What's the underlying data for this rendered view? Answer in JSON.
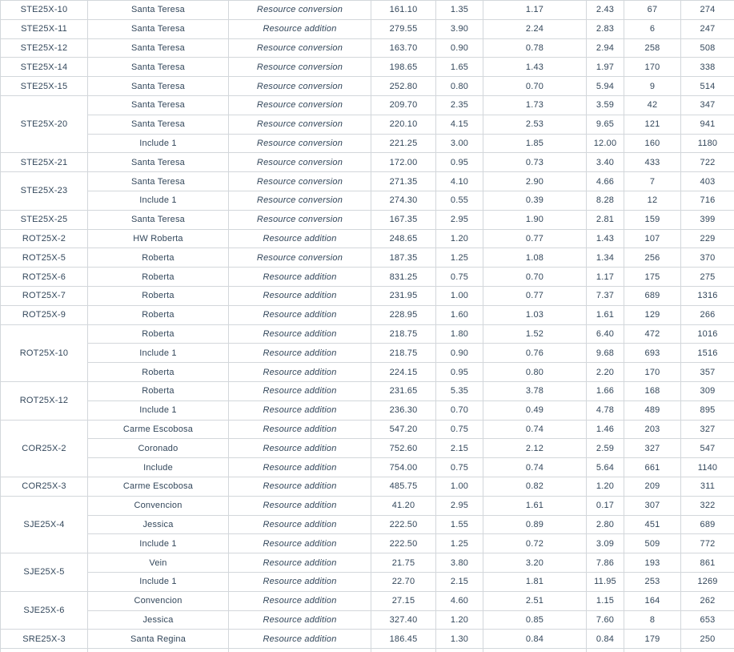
{
  "table": {
    "colors": {
      "text": "#33475b",
      "border": "#d3d7db",
      "background": "#ffffff"
    },
    "columns": [
      "id",
      "name",
      "type",
      "value1",
      "value2",
      "value3",
      "value4",
      "value5",
      "value6"
    ],
    "type_values_seen": [
      "Resource conversion",
      "Resource addition"
    ],
    "groups": [
      {
        "id": "STE25X-10",
        "rows": [
          {
            "name": "Santa Teresa",
            "type": "Resource conversion",
            "values": [
              "161.10",
              "1.35",
              "1.17",
              "2.43",
              "67",
              "274"
            ]
          }
        ]
      },
      {
        "id": "STE25X-11",
        "rows": [
          {
            "name": "Santa Teresa",
            "type": "Resource addition",
            "values": [
              "279.55",
              "3.90",
              "2.24",
              "2.83",
              "6",
              "247"
            ]
          }
        ]
      },
      {
        "id": "STE25X-12",
        "rows": [
          {
            "name": "Santa Teresa",
            "type": "Resource conversion",
            "values": [
              "163.70",
              "0.90",
              "0.78",
              "2.94",
              "258",
              "508"
            ]
          }
        ]
      },
      {
        "id": "STE25X-14",
        "rows": [
          {
            "name": "Santa Teresa",
            "type": "Resource conversion",
            "values": [
              "198.65",
              "1.65",
              "1.43",
              "1.97",
              "170",
              "338"
            ]
          }
        ]
      },
      {
        "id": "STE25X-15",
        "rows": [
          {
            "name": "Santa Teresa",
            "type": "Resource conversion",
            "values": [
              "252.80",
              "0.80",
              "0.70",
              "5.94",
              "9",
              "514"
            ]
          }
        ]
      },
      {
        "id": "STE25X-20",
        "rows": [
          {
            "name": "Santa Teresa",
            "type": "Resource conversion",
            "values": [
              "209.70",
              "2.35",
              "1.73",
              "3.59",
              "42",
              "347"
            ]
          },
          {
            "name": "Santa Teresa",
            "type": "Resource conversion",
            "values": [
              "220.10",
              "4.15",
              "2.53",
              "9.65",
              "121",
              "941"
            ]
          },
          {
            "name": "Include 1",
            "type": "Resource conversion",
            "values": [
              "221.25",
              "3.00",
              "1.85",
              "12.00",
              "160",
              "1180"
            ]
          }
        ]
      },
      {
        "id": "STE25X-21",
        "rows": [
          {
            "name": "Santa Teresa",
            "type": "Resource conversion",
            "values": [
              "172.00",
              "0.95",
              "0.73",
              "3.40",
              "433",
              "722"
            ]
          }
        ]
      },
      {
        "id": "STE25X-23",
        "rows": [
          {
            "name": "Santa Teresa",
            "type": "Resource conversion",
            "values": [
              "271.35",
              "4.10",
              "2.90",
              "4.66",
              "7",
              "403"
            ]
          },
          {
            "name": "Include 1",
            "type": "Resource conversion",
            "values": [
              "274.30",
              "0.55",
              "0.39",
              "8.28",
              "12",
              "716"
            ]
          }
        ]
      },
      {
        "id": "STE25X-25",
        "rows": [
          {
            "name": "Santa Teresa",
            "type": "Resource conversion",
            "values": [
              "167.35",
              "2.95",
              "1.90",
              "2.81",
              "159",
              "399"
            ]
          }
        ]
      },
      {
        "id": "ROT25X-2",
        "rows": [
          {
            "name": "HW Roberta",
            "type": "Resource addition",
            "values": [
              "248.65",
              "1.20",
              "0.77",
              "1.43",
              "107",
              "229"
            ]
          }
        ]
      },
      {
        "id": "ROT25X-5",
        "rows": [
          {
            "name": "Roberta",
            "type": "Resource conversion",
            "values": [
              "187.35",
              "1.25",
              "1.08",
              "1.34",
              "256",
              "370"
            ]
          }
        ]
      },
      {
        "id": "ROT25X-6",
        "rows": [
          {
            "name": "Roberta",
            "type": "Resource addition",
            "values": [
              "831.25",
              "0.75",
              "0.70",
              "1.17",
              "175",
              "275"
            ]
          }
        ]
      },
      {
        "id": "ROT25X-7",
        "rows": [
          {
            "name": "Roberta",
            "type": "Resource addition",
            "values": [
              "231.95",
              "1.00",
              "0.77",
              "7.37",
              "689",
              "1316"
            ]
          }
        ]
      },
      {
        "id": "ROT25X-9",
        "rows": [
          {
            "name": "Roberta",
            "type": "Resource addition",
            "values": [
              "228.95",
              "1.60",
              "1.03",
              "1.61",
              "129",
              "266"
            ]
          }
        ]
      },
      {
        "id": "ROT25X-10",
        "rows": [
          {
            "name": "Roberta",
            "type": "Resource addition",
            "values": [
              "218.75",
              "1.80",
              "1.52",
              "6.40",
              "472",
              "1016"
            ]
          },
          {
            "name": "Include 1",
            "type": "Resource addition",
            "values": [
              "218.75",
              "0.90",
              "0.76",
              "9.68",
              "693",
              "1516"
            ]
          },
          {
            "name": "Roberta",
            "type": "Resource addition",
            "values": [
              "224.15",
              "0.95",
              "0.80",
              "2.20",
              "170",
              "357"
            ]
          }
        ]
      },
      {
        "id": "ROT25X-12",
        "rows": [
          {
            "name": "Roberta",
            "type": "Resource addition",
            "values": [
              "231.65",
              "5.35",
              "3.78",
              "1.66",
              "168",
              "309"
            ]
          },
          {
            "name": "Include 1",
            "type": "Resource addition",
            "values": [
              "236.30",
              "0.70",
              "0.49",
              "4.78",
              "489",
              "895"
            ]
          }
        ]
      },
      {
        "id": "COR25X-2",
        "rows": [
          {
            "name": "Carme Escobosa",
            "type": "Resource addition",
            "values": [
              "547.20",
              "0.75",
              "0.74",
              "1.46",
              "203",
              "327"
            ]
          },
          {
            "name": "Coronado",
            "type": "Resource addition",
            "values": [
              "752.60",
              "2.15",
              "2.12",
              "2.59",
              "327",
              "547"
            ]
          },
          {
            "name": "Include",
            "type": "Resource addition",
            "values": [
              "754.00",
              "0.75",
              "0.74",
              "5.64",
              "661",
              "1140"
            ]
          }
        ]
      },
      {
        "id": "COR25X-3",
        "rows": [
          {
            "name": "Carme Escobosa",
            "type": "Resource addition",
            "values": [
              "485.75",
              "1.00",
              "0.82",
              "1.20",
              "209",
              "311"
            ]
          }
        ]
      },
      {
        "id": "SJE25X-4",
        "rows": [
          {
            "name": "Convencion",
            "type": "Resource addition",
            "values": [
              "41.20",
              "2.95",
              "1.61",
              "0.17",
              "307",
              "322"
            ]
          },
          {
            "name": "Jessica",
            "type": "Resource addition",
            "values": [
              "222.50",
              "1.55",
              "0.89",
              "2.80",
              "451",
              "689"
            ]
          },
          {
            "name": "Include 1",
            "type": "Resource addition",
            "values": [
              "222.50",
              "1.25",
              "0.72",
              "3.09",
              "509",
              "772"
            ]
          }
        ]
      },
      {
        "id": "SJE25X-5",
        "rows": [
          {
            "name": "Vein",
            "type": "Resource addition",
            "values": [
              "21.75",
              "3.80",
              "3.20",
              "7.86",
              "193",
              "861"
            ]
          },
          {
            "name": "Include 1",
            "type": "Resource addition",
            "values": [
              "22.70",
              "2.15",
              "1.81",
              "11.95",
              "253",
              "1269"
            ]
          }
        ]
      },
      {
        "id": "SJE25X-6",
        "rows": [
          {
            "name": "Convencion",
            "type": "Resource addition",
            "values": [
              "27.15",
              "4.60",
              "2.51",
              "1.15",
              "164",
              "262"
            ]
          },
          {
            "name": "Jessica",
            "type": "Resource addition",
            "values": [
              "327.40",
              "1.20",
              "0.85",
              "7.60",
              "8",
              "653"
            ]
          }
        ]
      },
      {
        "id": "SRE25X-3",
        "rows": [
          {
            "name": "Santa Regina",
            "type": "Resource addition",
            "values": [
              "186.45",
              "1.30",
              "0.84",
              "0.84",
              "179",
              "250"
            ]
          }
        ]
      }
    ]
  }
}
